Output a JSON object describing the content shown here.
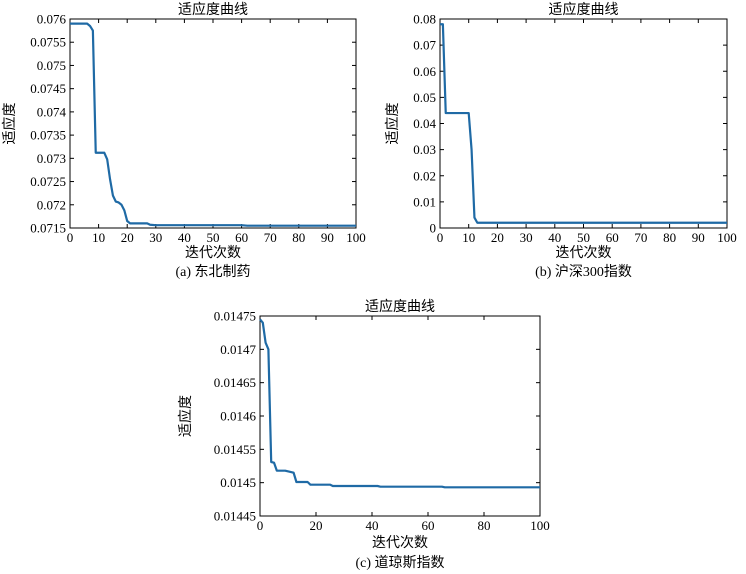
{
  "chart_data": [
    {
      "type": "line",
      "title": "适应度曲线",
      "xlabel": "迭代次数",
      "ylabel": "适应度",
      "caption": "(a) 东北制药",
      "xlim": [
        0,
        100
      ],
      "ylim": [
        0.0715,
        0.076
      ],
      "xticks": [
        "0",
        "10",
        "20",
        "30",
        "40",
        "50",
        "60",
        "70",
        "80",
        "90",
        "100"
      ],
      "yticks": [
        "0.0715",
        "0.072",
        "0.0725",
        "0.073",
        "0.0735",
        "0.074",
        "0.0745",
        "0.075",
        "0.0755",
        "0.076"
      ],
      "line_color": "#1f6aa5",
      "series": [
        {
          "x": [
            0,
            6,
            7,
            8,
            9,
            10,
            12,
            13,
            14,
            15,
            16,
            17,
            18,
            19,
            20,
            21,
            23,
            27,
            28,
            30,
            40,
            60,
            62,
            100
          ],
          "values": [
            0.0759,
            0.0759,
            0.07585,
            0.07575,
            0.07312,
            0.07312,
            0.07312,
            0.07298,
            0.07255,
            0.0722,
            0.07207,
            0.07205,
            0.072,
            0.07188,
            0.07165,
            0.0716,
            0.0716,
            0.0716,
            0.07157,
            0.07156,
            0.07156,
            0.07156,
            0.07155,
            0.07155
          ]
        }
      ]
    },
    {
      "type": "line",
      "title": "适应度曲线",
      "xlabel": "迭代次数",
      "ylabel": "适应度",
      "caption": "(b) 沪深300指数",
      "xlim": [
        0,
        100
      ],
      "ylim": [
        0,
        0.08
      ],
      "xticks": [
        "0",
        "10",
        "20",
        "30",
        "40",
        "50",
        "60",
        "70",
        "80",
        "90",
        "100"
      ],
      "yticks": [
        "0",
        "0.01",
        "0.02",
        "0.03",
        "0.04",
        "0.05",
        "0.06",
        "0.07",
        "0.08"
      ],
      "line_color": "#1f6aa5",
      "series": [
        {
          "x": [
            0,
            1,
            2,
            3,
            8,
            10,
            11,
            12,
            13,
            100
          ],
          "values": [
            0.078,
            0.078,
            0.044,
            0.044,
            0.044,
            0.044,
            0.03,
            0.004,
            0.002,
            0.002
          ]
        }
      ]
    },
    {
      "type": "line",
      "title": "适应度曲线",
      "xlabel": "迭代次数",
      "ylabel": "适应度",
      "caption": "(c) 道琼斯指数",
      "xlim": [
        0,
        100
      ],
      "ylim": [
        0.01445,
        0.01475
      ],
      "xticks": [
        "0",
        "20",
        "40",
        "60",
        "80",
        "100"
      ],
      "yticks": [
        "0.01445",
        "0.0145",
        "0.01455",
        "0.0146",
        "0.01465",
        "0.0147",
        "0.01475"
      ],
      "line_color": "#1f6aa5",
      "series": [
        {
          "x": [
            0,
            1,
            2,
            3,
            4,
            5,
            6,
            7,
            9,
            12,
            13,
            17,
            18,
            25,
            26,
            42,
            43,
            60,
            65,
            66,
            100
          ],
          "values": [
            0.014745,
            0.01474,
            0.01471,
            0.0147,
            0.014531,
            0.01453,
            0.014518,
            0.014518,
            0.014518,
            0.014515,
            0.014501,
            0.014501,
            0.014497,
            0.014497,
            0.014495,
            0.014495,
            0.014494,
            0.014494,
            0.014494,
            0.014493,
            0.014493
          ]
        }
      ]
    }
  ]
}
